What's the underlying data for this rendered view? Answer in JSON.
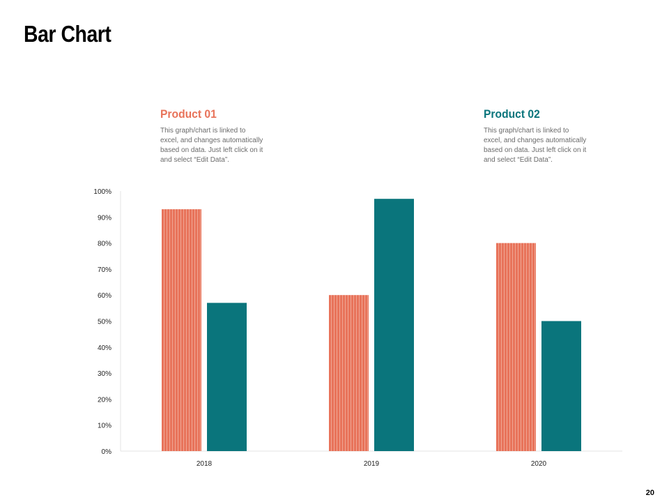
{
  "slide": {
    "title": "Bar Chart",
    "page_number": "20"
  },
  "legend": [
    {
      "heading": "Product 01",
      "color": "#E8735A",
      "lines": [
        "This graph/chart is linked to",
        "excel,  and changes automatically",
        "based on data. Just left click on it",
        "and select “Edit Data”."
      ]
    },
    {
      "heading": "Product 02",
      "color": "#0A757C",
      "lines": [
        "This graph/chart is linked to",
        "excel,  and changes automatically",
        "based on data. Just left click on it",
        "and select “Edit Data”."
      ]
    }
  ],
  "chart_data": {
    "type": "bar",
    "title": "",
    "xlabel": "",
    "ylabel": "",
    "categories": [
      "2018",
      "2019",
      "2020"
    ],
    "series": [
      {
        "name": "Product 01",
        "color": "#E8735A",
        "values": [
          93,
          60,
          80
        ]
      },
      {
        "name": "Product 02",
        "color": "#0A757C",
        "values": [
          57,
          97,
          50
        ]
      }
    ],
    "ylim": [
      0,
      100
    ],
    "yticks": [
      0,
      10,
      20,
      30,
      40,
      50,
      60,
      70,
      80,
      90,
      100
    ],
    "ytick_labels": [
      "0%",
      "10%",
      "20%",
      "30%",
      "40%",
      "50%",
      "60%",
      "70%",
      "80%",
      "90%",
      "100%"
    ],
    "grid": false,
    "legend_position": "top"
  }
}
